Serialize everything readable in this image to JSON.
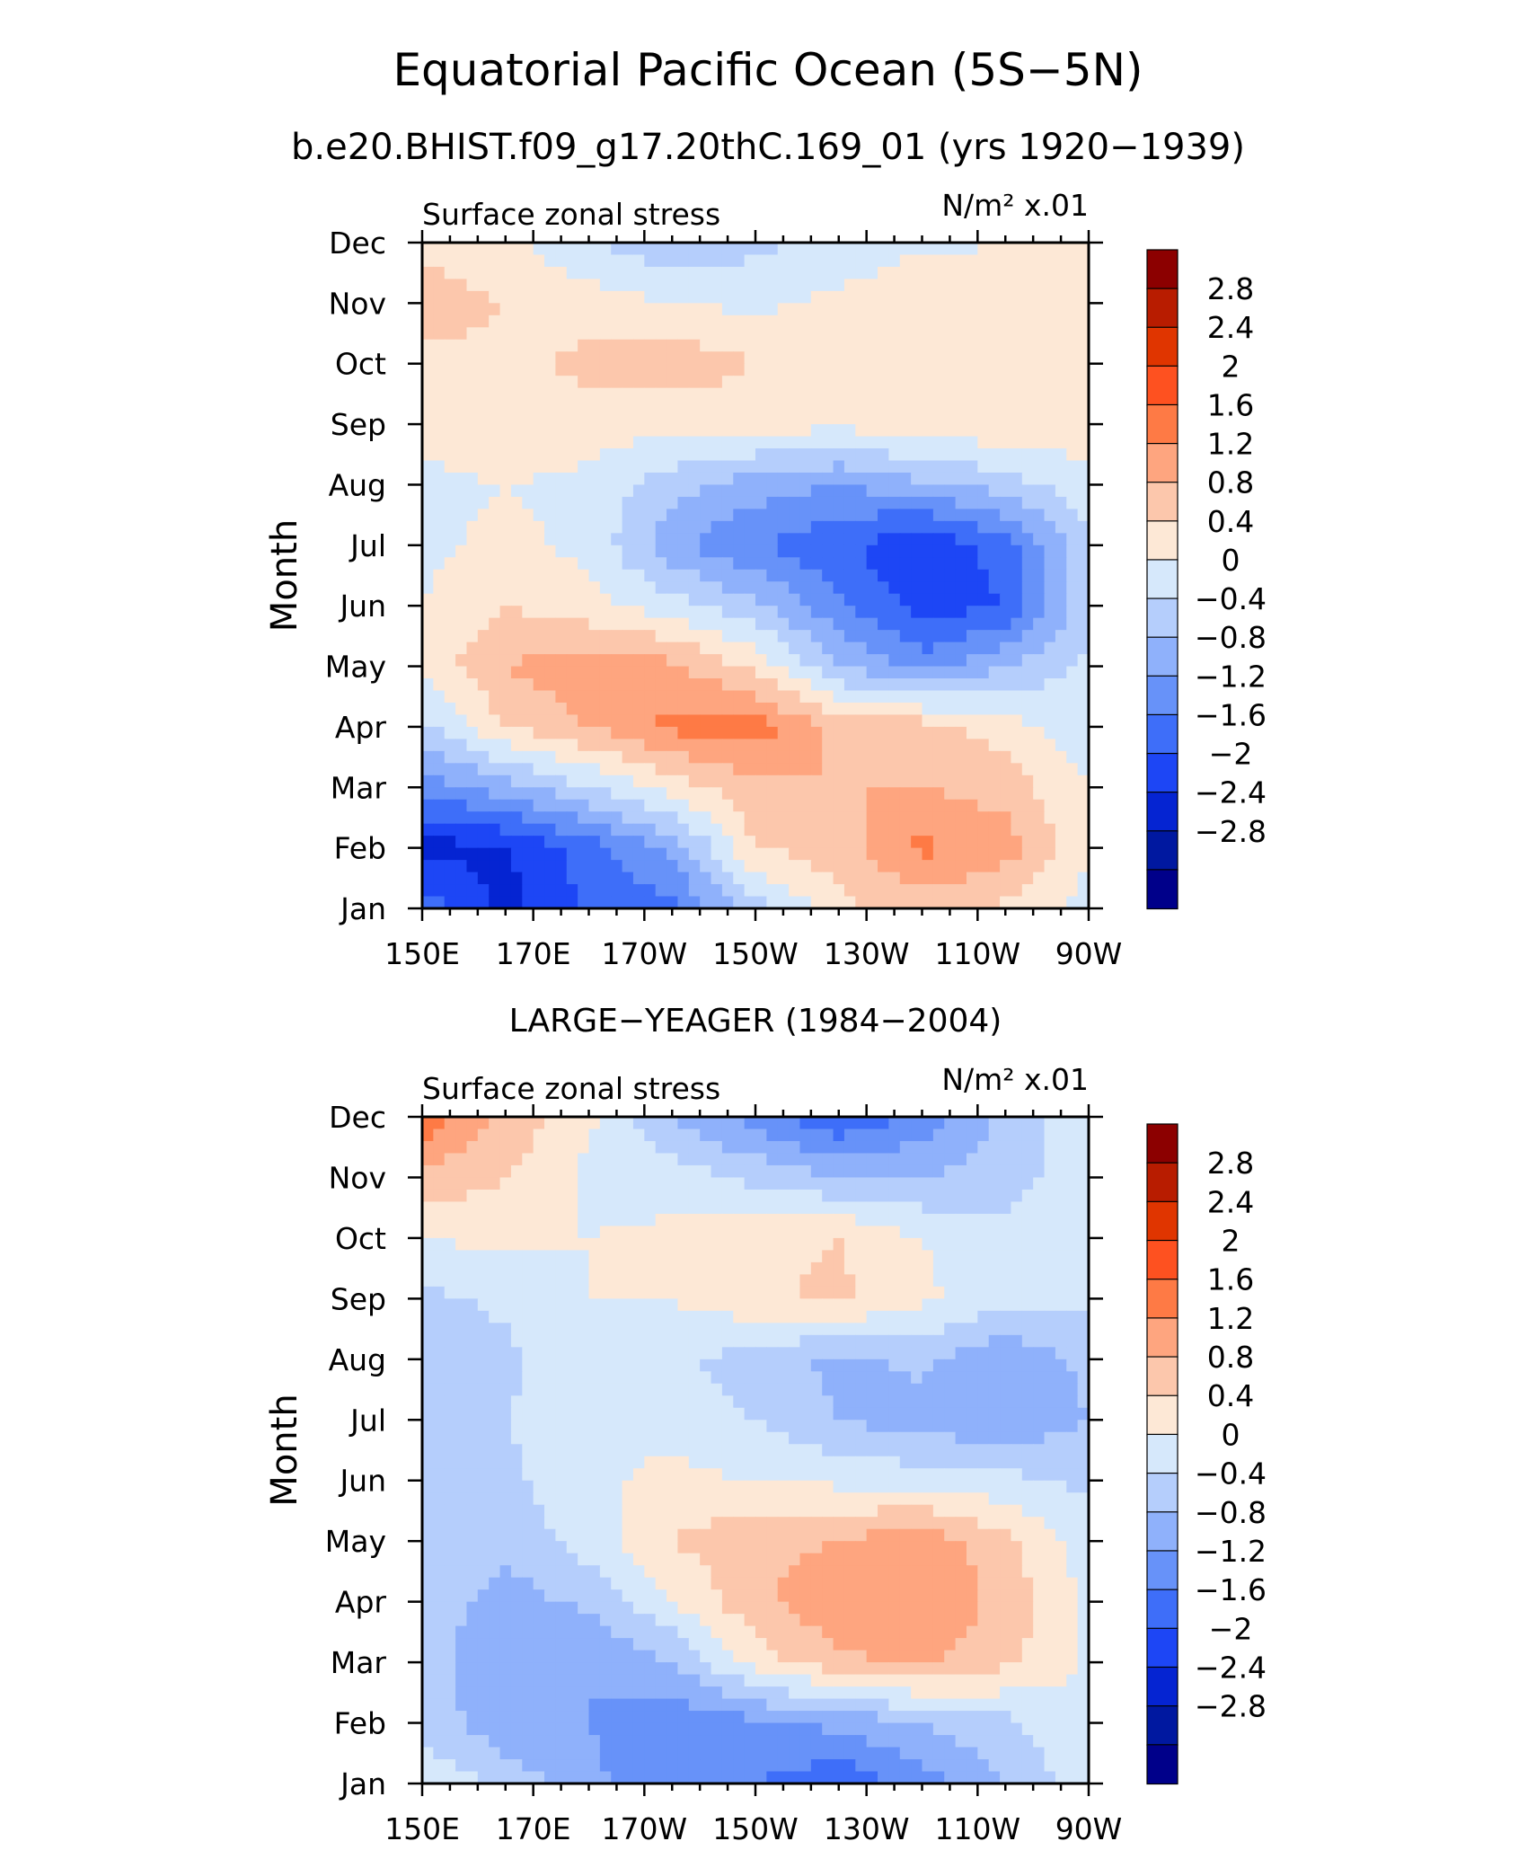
{
  "figure": {
    "title": "Equatorial Pacific Ocean (5S−5N)",
    "subtitle": "b.e20.BHIST.f09_g17.20thC.169_01 (yrs 1920−1939)"
  },
  "chart_data": [
    {
      "type": "heatmap",
      "title": "",
      "left_label": "Surface zonal stress",
      "units_label": "N/m² x.01",
      "xlabel": "",
      "ylabel": "Month",
      "x_ticks": [
        "150E",
        "170E",
        "170W",
        "150W",
        "130W",
        "110W",
        "90W"
      ],
      "y_ticks": [
        "Jan",
        "Feb",
        "Mar",
        "Apr",
        "May",
        "Jun",
        "Jul",
        "Aug",
        "Sep",
        "Oct",
        "Nov",
        "Dec"
      ],
      "xlim": [
        150,
        270
      ],
      "colorbar_labels": [
        "2.8",
        "2.4",
        "2",
        "1.6",
        "1.2",
        "0.8",
        "0.4",
        "0",
        "−0.4",
        "−0.8",
        "−1.2",
        "−1.6",
        "−2",
        "−2.4",
        "−2.8"
      ],
      "colorbar_colors": [
        "#8c0000",
        "#b81c00",
        "#e03500",
        "#fe5120",
        "#fe7a45",
        "#fea57f",
        "#fcc7ac",
        "#fde8d6",
        "#d6e8fb",
        "#b5cefc",
        "#8fb1fb",
        "#6792f9",
        "#3e6ef9",
        "#1d46f5",
        "#0524d2",
        "#0018a0",
        "#00008a"
      ],
      "x": [
        150,
        165,
        180,
        195,
        210,
        225,
        240,
        255,
        270
      ],
      "z": [
        [
          -1.5,
          -2.4,
          -1.7,
          -1.5,
          -0.4,
          0.5,
          0.8,
          0.5,
          0.0
        ],
        [
          -2.4,
          -2.2,
          -1.6,
          -0.9,
          0.6,
          0.8,
          1.5,
          1.2,
          0.3
        ],
        [
          -1.2,
          -0.8,
          -0.2,
          0.4,
          0.9,
          1.0,
          1.0,
          0.8,
          0.2
        ],
        [
          -0.3,
          0.6,
          1.0,
          1.5,
          1.6,
          0.9,
          0.8,
          0.4,
          -0.1
        ],
        [
          0.3,
          1.0,
          1.3,
          1.1,
          0.5,
          -0.6,
          -1.2,
          -0.6,
          -0.1
        ],
        [
          0.2,
          0.6,
          0.3,
          0.0,
          -0.5,
          -1.3,
          -2.0,
          -1.8,
          -0.3
        ],
        [
          0.1,
          0.3,
          0.1,
          -0.9,
          -1.4,
          -1.7,
          -2.2,
          -1.6,
          -0.3
        ],
        [
          0.1,
          0.2,
          0.1,
          -0.4,
          -0.8,
          -1.0,
          -0.7,
          -0.4,
          0.1
        ],
        [
          0.3,
          0.5,
          0.4,
          0.3,
          0.4,
          0.3,
          0.5,
          0.5,
          0.4
        ],
        [
          0.5,
          0.5,
          0.7,
          0.9,
          0.6,
          0.5,
          0.5,
          0.5,
          0.5
        ],
        [
          0.8,
          0.6,
          0.4,
          0.2,
          0.1,
          0.3,
          0.6,
          0.5,
          0.4
        ],
        [
          0.5,
          0.3,
          -0.2,
          -0.5,
          -0.3,
          -0.1,
          0.1,
          0.2,
          0.3
        ]
      ]
    },
    {
      "type": "heatmap",
      "title": "LARGE−YEAGER (1984−2004)",
      "left_label": "Surface zonal stress",
      "units_label": "N/m² x.01",
      "xlabel": "",
      "ylabel": "Month",
      "x_ticks": [
        "150E",
        "170E",
        "170W",
        "150W",
        "130W",
        "110W",
        "90W"
      ],
      "y_ticks": [
        "Jan",
        "Feb",
        "Mar",
        "Apr",
        "May",
        "Jun",
        "Jul",
        "Aug",
        "Sep",
        "Oct",
        "Nov",
        "Dec"
      ],
      "xlim": [
        150,
        270
      ],
      "colorbar_labels": [
        "2.8",
        "2.4",
        "2",
        "1.6",
        "1.2",
        "0.8",
        "0.4",
        "0",
        "−0.4",
        "−0.8",
        "−1.2",
        "−1.6",
        "−2",
        "−2.4",
        "−2.8"
      ],
      "colorbar_colors": [
        "#8c0000",
        "#b81c00",
        "#e03500",
        "#fe5120",
        "#fe7a45",
        "#fea57f",
        "#fcc7ac",
        "#fde8d6",
        "#d6e8fb",
        "#b5cefc",
        "#8fb1fb",
        "#6792f9",
        "#3e6ef9",
        "#1d46f5",
        "#0524d2",
        "#0018a0",
        "#00008a"
      ],
      "x": [
        150,
        165,
        180,
        195,
        210,
        225,
        240,
        255,
        270
      ],
      "z": [
        [
          0.1,
          -0.3,
          -0.9,
          -1.3,
          -1.4,
          -1.7,
          -1.2,
          -0.6,
          0.1
        ],
        [
          -0.3,
          -0.9,
          -1.0,
          -1.3,
          -1.1,
          -0.9,
          -0.6,
          -0.3,
          0.2
        ],
        [
          -0.4,
          -1.0,
          -1.0,
          -0.6,
          0.4,
          0.9,
          1.1,
          0.7,
          0.1
        ],
        [
          -0.3,
          -0.8,
          -0.5,
          0.2,
          0.9,
          1.3,
          1.3,
          0.9,
          0.1
        ],
        [
          -0.2,
          -0.5,
          0.0,
          0.6,
          0.9,
          1.0,
          1.3,
          0.7,
          0.0
        ],
        [
          -0.2,
          -0.3,
          0.1,
          0.3,
          0.2,
          0.1,
          0.0,
          -0.1,
          -0.3
        ],
        [
          -0.2,
          -0.2,
          0.1,
          0.1,
          -0.2,
          -0.6,
          -0.8,
          -0.9,
          -0.6
        ],
        [
          -0.6,
          -0.3,
          0.1,
          -0.1,
          -0.4,
          -0.7,
          -0.5,
          -0.9,
          -0.5
        ],
        [
          -0.3,
          -0.1,
          0.2,
          0.2,
          0.5,
          0.7,
          0.3,
          -0.1,
          -0.1
        ],
        [
          0.2,
          0.3,
          0.2,
          0.3,
          0.5,
          0.6,
          0.2,
          -0.1,
          0.2
        ],
        [
          0.9,
          0.6,
          0.1,
          0.0,
          -0.3,
          -0.6,
          -0.6,
          -0.4,
          0.1
        ],
        [
          1.7,
          0.9,
          0.3,
          -0.6,
          -1.2,
          -1.8,
          -1.3,
          -0.5,
          0.1
        ]
      ]
    }
  ]
}
